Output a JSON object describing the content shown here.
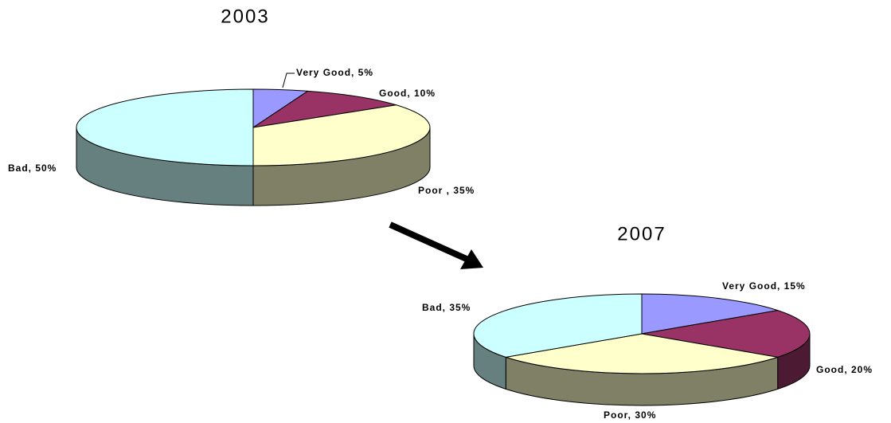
{
  "chart_data": [
    {
      "type": "pie",
      "title": "2003",
      "values": [
        5,
        10,
        35,
        50
      ],
      "value_labels": [
        "Very Good, 5%",
        "Good, 10%",
        "Poor , 35%",
        "Bad, 50%"
      ],
      "colors": [
        "#9999ff",
        "#993366",
        "#ffffcc",
        "#ccffff"
      ]
    },
    {
      "type": "pie",
      "title": "2007",
      "values": [
        15,
        20,
        30,
        35
      ],
      "value_labels": [
        "Very Good, 15%",
        "Good, 20%",
        "Poor, 30%",
        "Bad, 35%"
      ],
      "colors": [
        "#9999ff",
        "#993366",
        "#ffffcc",
        "#ccffff"
      ]
    }
  ]
}
